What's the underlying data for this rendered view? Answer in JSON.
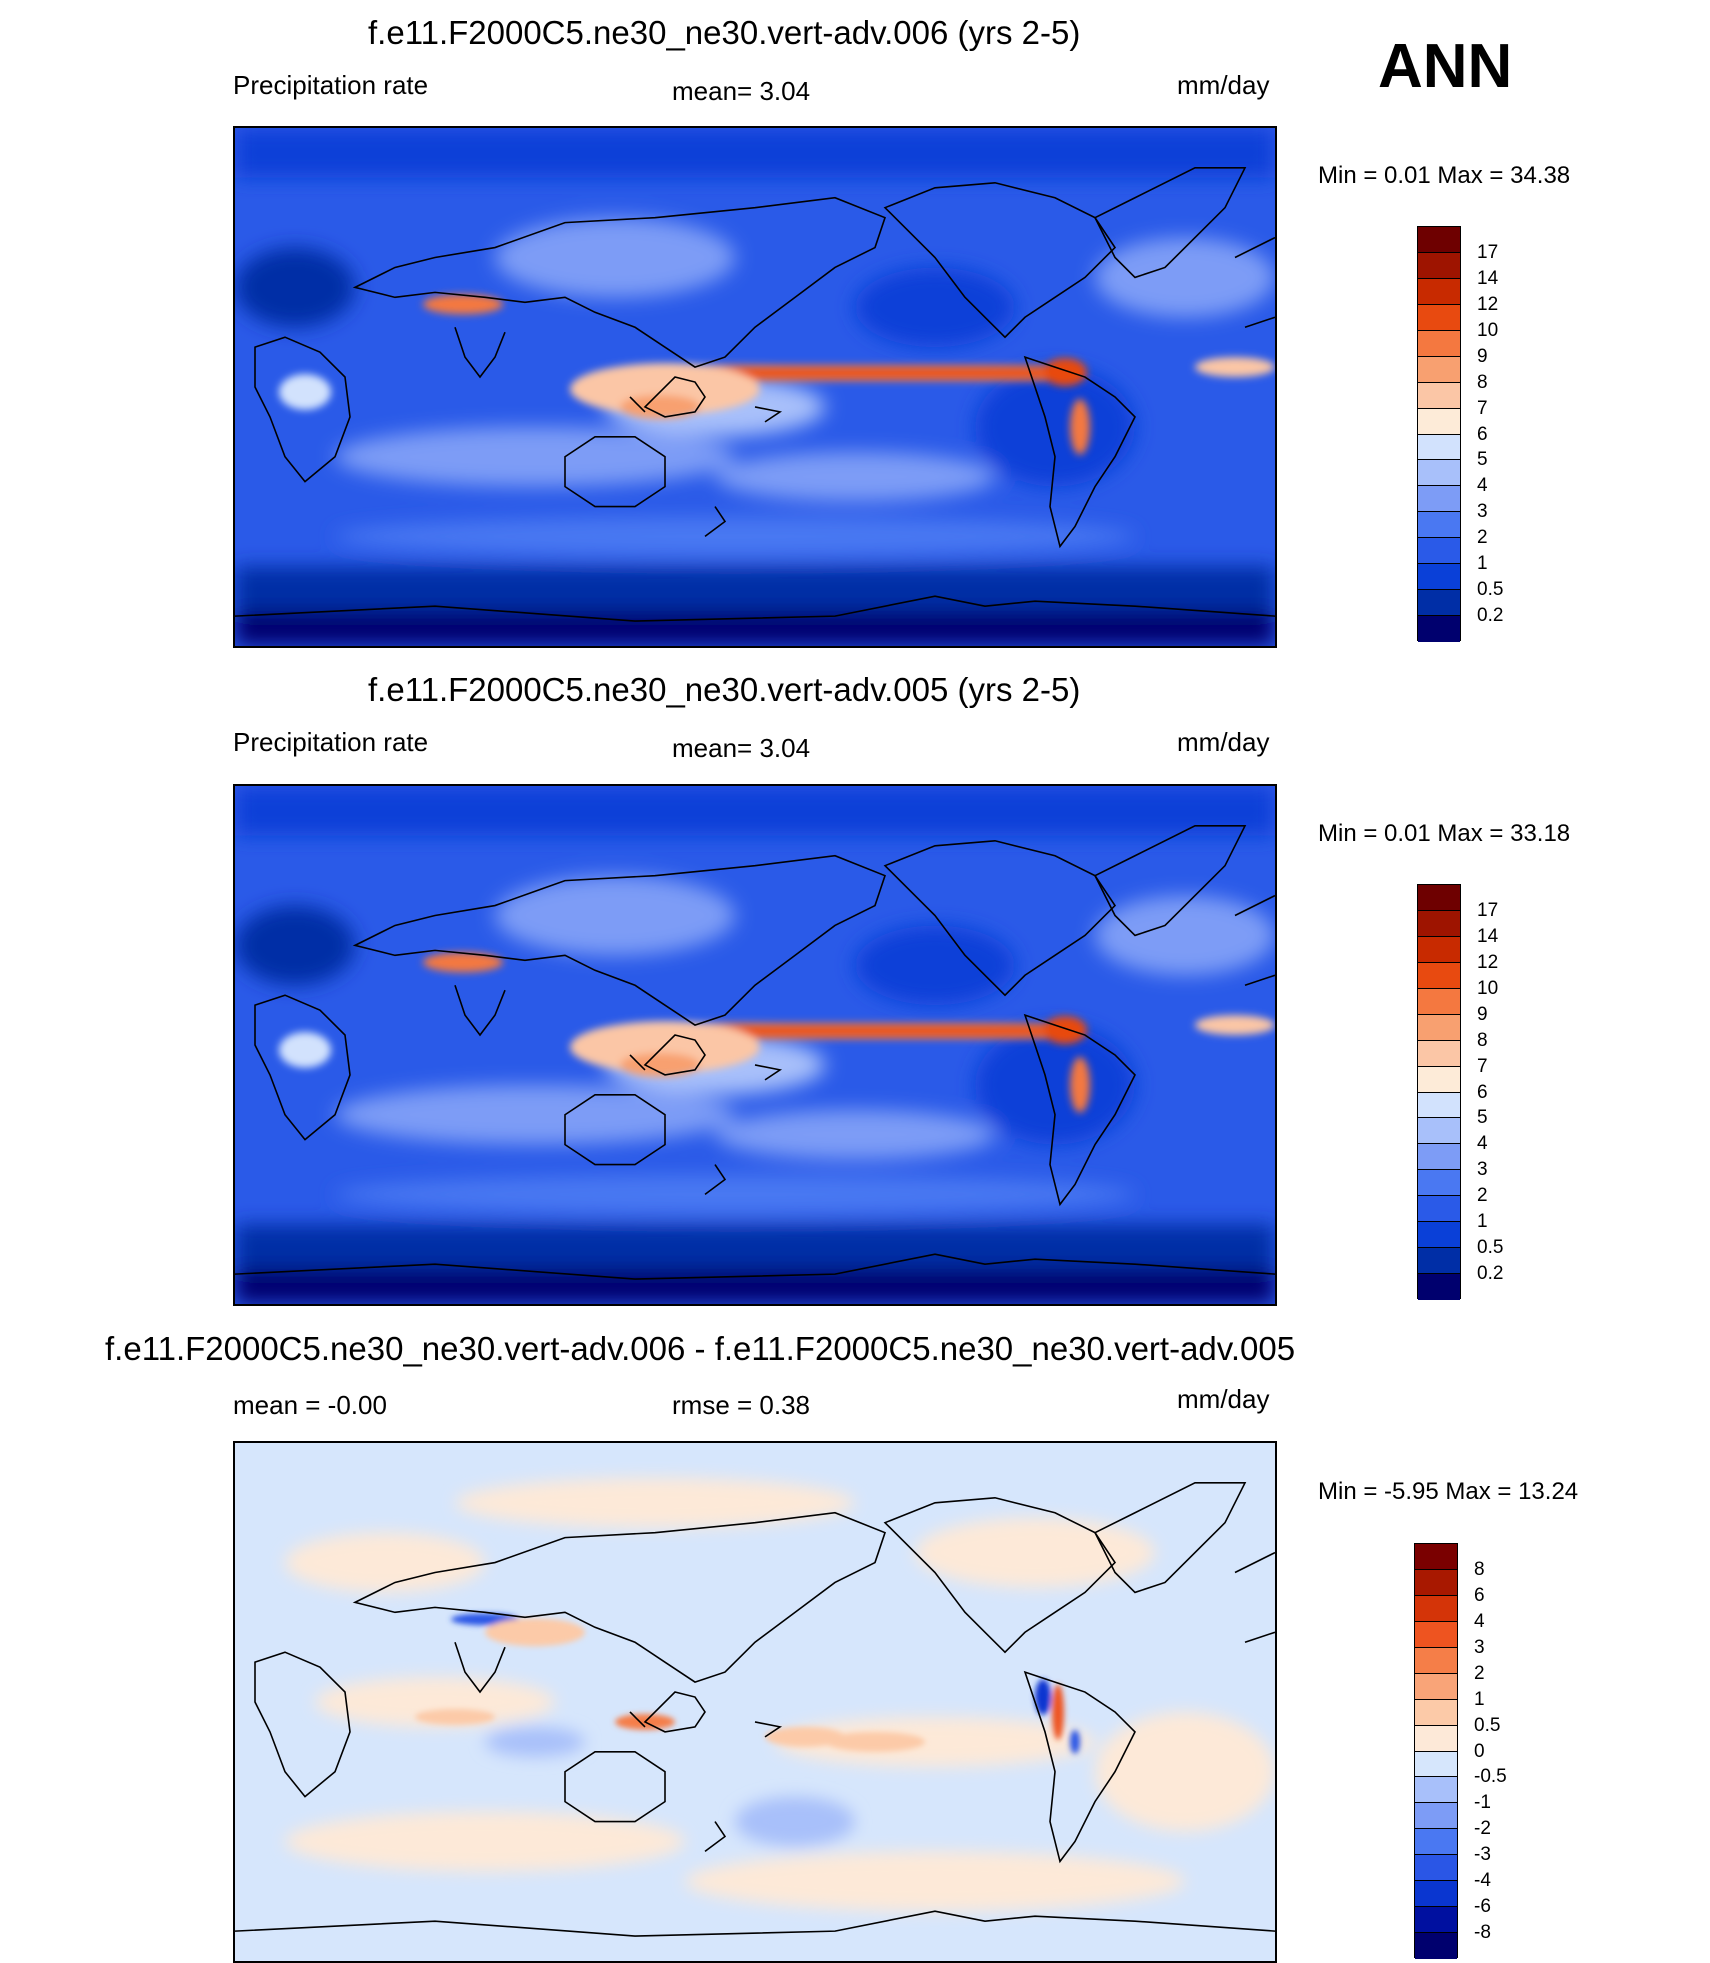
{
  "season": "ANN",
  "colors": {
    "abs_scale": [
      "#00006e",
      "#002ea6",
      "#0a40d8",
      "#2a5ae8",
      "#4a78f2",
      "#7d9cf6",
      "#a8c0fa",
      "#d2e2fd",
      "#fdebd8",
      "#fbc6a6",
      "#f8a070",
      "#f47840",
      "#e84a10",
      "#c82a00",
      "#9e1400",
      "#6e0000"
    ],
    "diff_scale": [
      "#00006e",
      "#0010a0",
      "#0a36d0",
      "#2a56e6",
      "#4a78f2",
      "#7d9cf6",
      "#a8c0fa",
      "#d6e6fc",
      "#fde9d8",
      "#fccaa8",
      "#f9a478",
      "#f57e48",
      "#ee5420",
      "#d43408",
      "#a81800",
      "#7a0000"
    ]
  },
  "panels": [
    {
      "title": "f.e11.F2000C5.ne30_ne30.vert-adv.006 (yrs 2-5)",
      "left_label": "Precipitation rate",
      "center_label": "mean=   3.04",
      "units": "mm/day",
      "minmax": "Min =    0.01 Max =  34.38",
      "ticks": [
        "17",
        "14",
        "12",
        "10",
        "9",
        "8",
        "7",
        "6",
        "5",
        "4",
        "3",
        "2",
        "1",
        "0.5",
        "0.2"
      ]
    },
    {
      "title": "f.e11.F2000C5.ne30_ne30.vert-adv.005 (yrs 2-5)",
      "left_label": "Precipitation rate",
      "center_label": "mean=   3.04",
      "units": "mm/day",
      "minmax": "Min =    0.01 Max =  33.18",
      "ticks": [
        "17",
        "14",
        "12",
        "10",
        "9",
        "8",
        "7",
        "6",
        "5",
        "4",
        "3",
        "2",
        "1",
        "0.5",
        "0.2"
      ]
    },
    {
      "title": "f.e11.F2000C5.ne30_ne30.vert-adv.006 - f.e11.F2000C5.ne30_ne30.vert-adv.005",
      "left_label": "mean =  -0.00",
      "center_label": "rmse =    0.38",
      "units": "mm/day",
      "minmax": "Min =  -5.95 Max =  13.24",
      "ticks": [
        "8",
        "6",
        "4",
        "3",
        "2",
        "1",
        "0.5",
        "0",
        "-0.5",
        "-1",
        "-2",
        "-3",
        "-4",
        "-6",
        "-8"
      ]
    }
  ]
}
